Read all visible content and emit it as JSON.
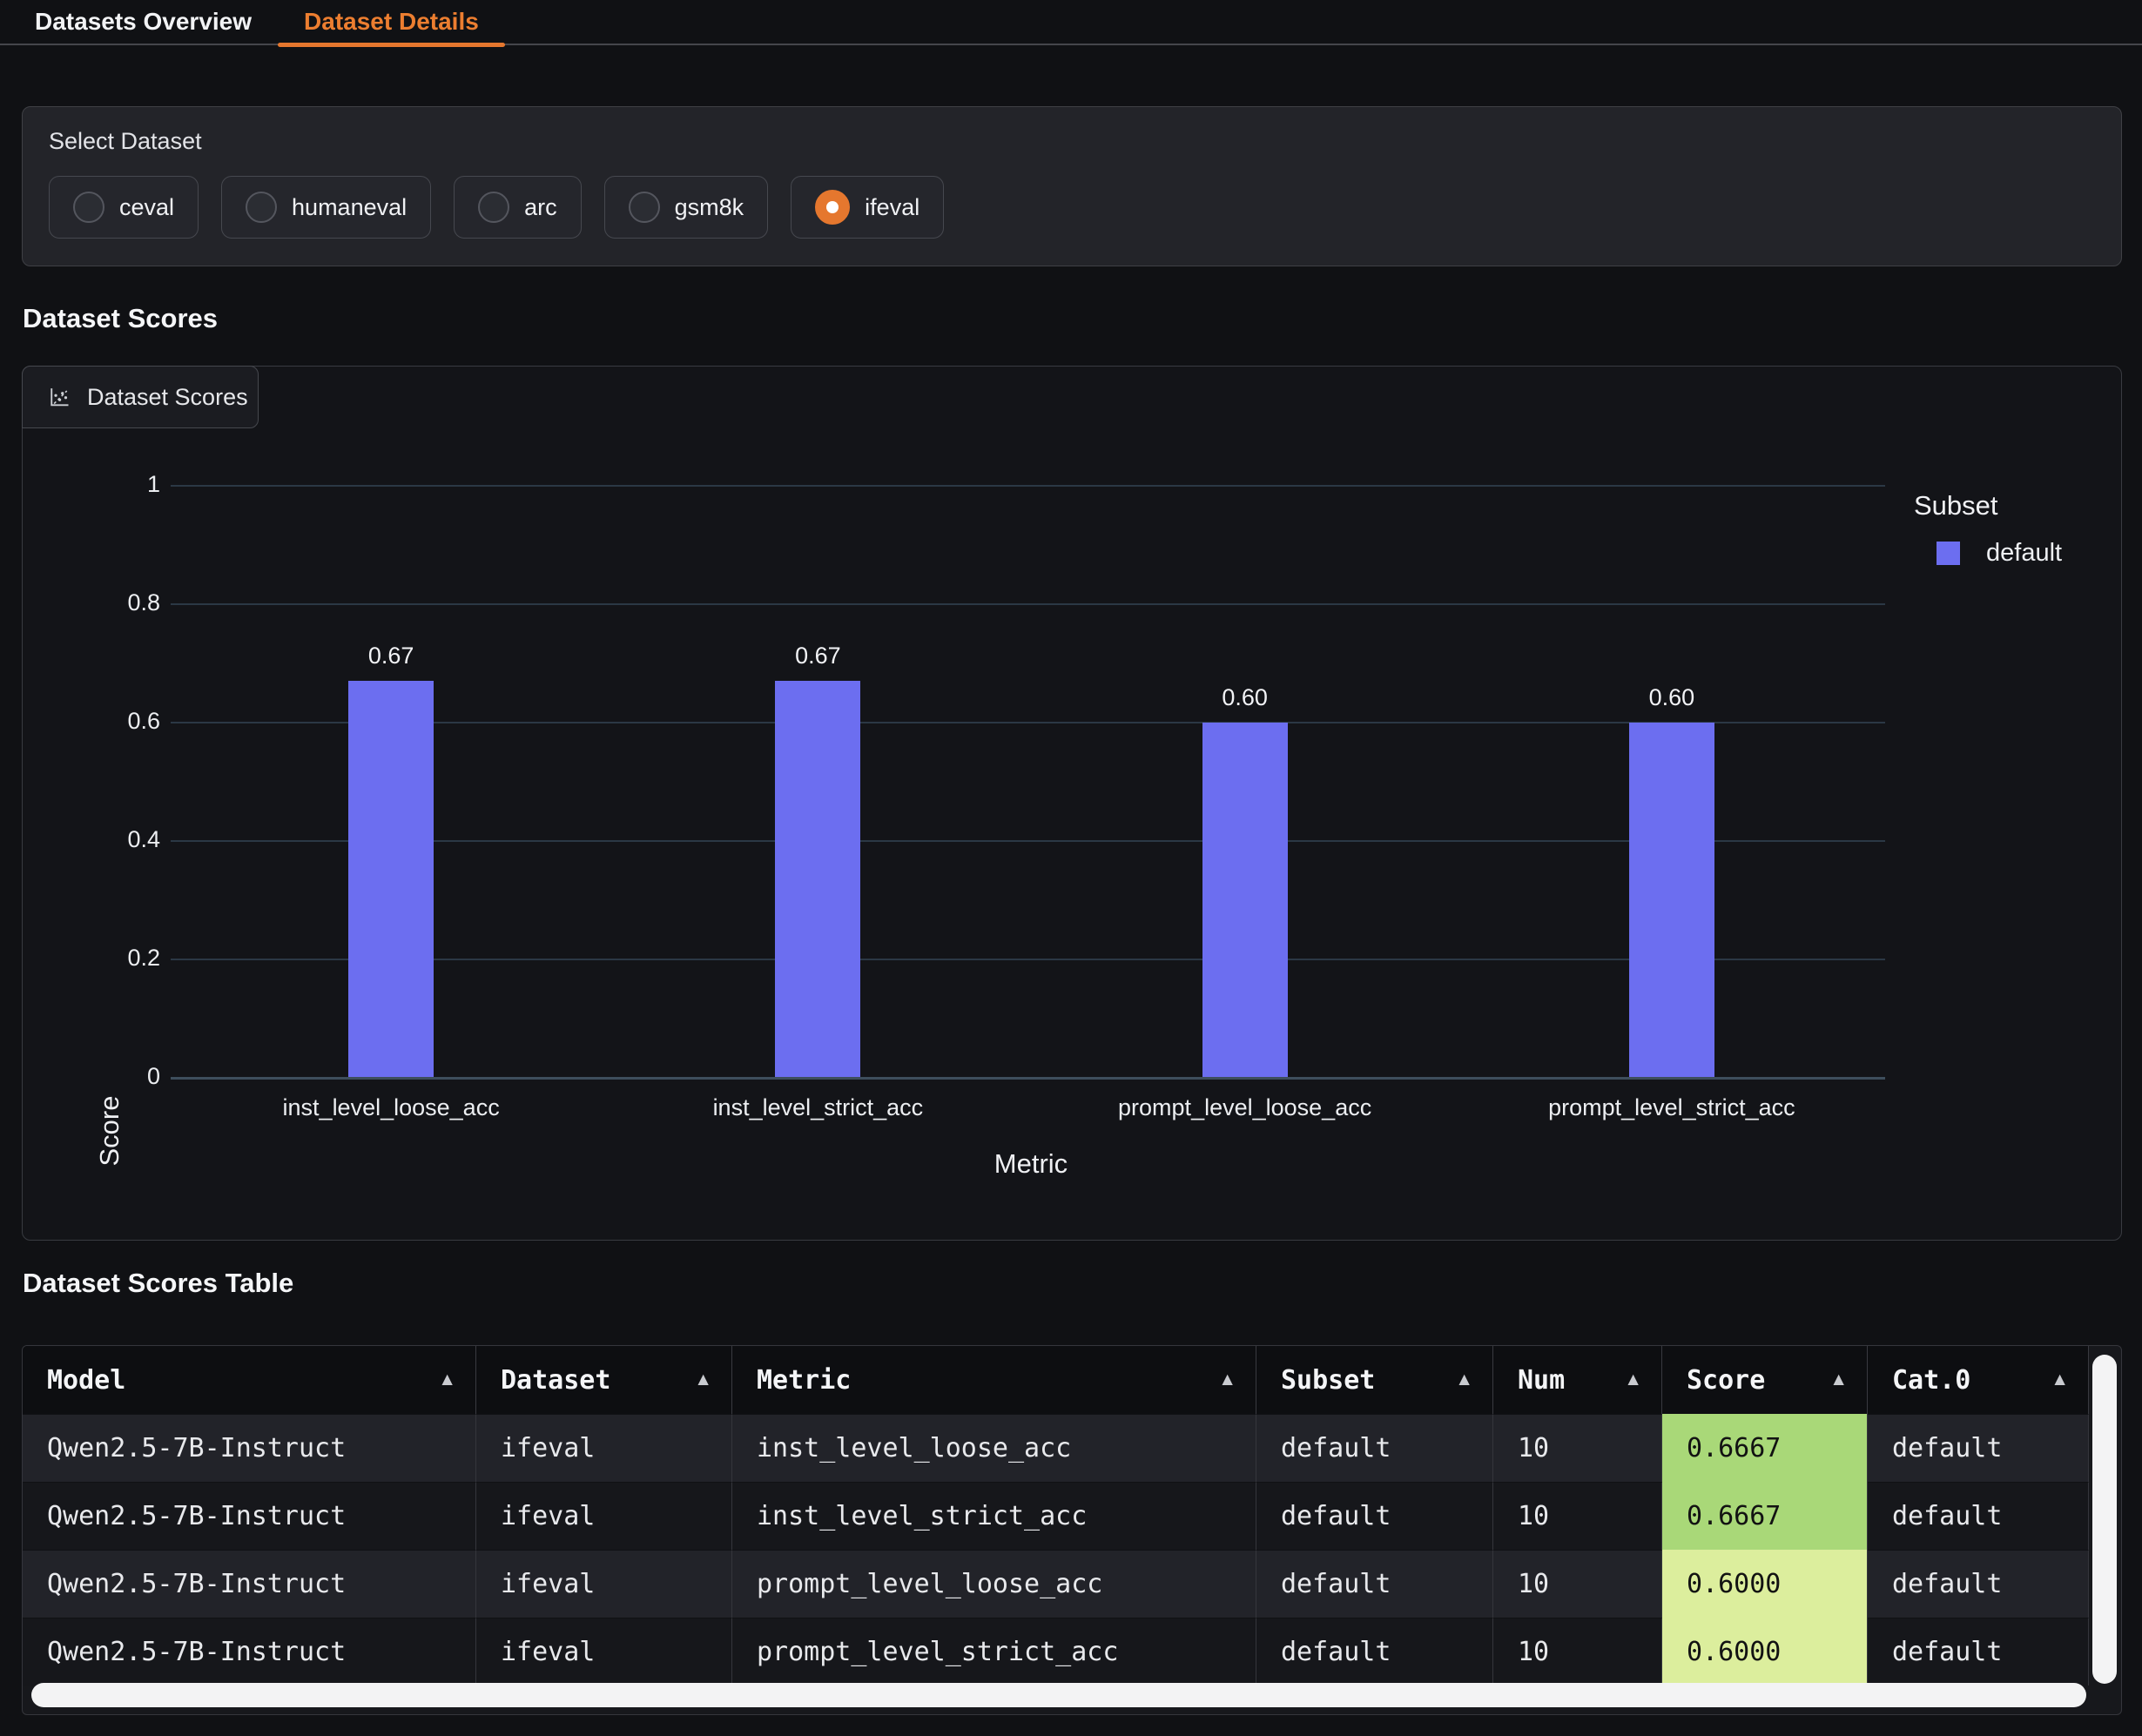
{
  "tabs": {
    "items": [
      {
        "label": "Datasets Overview",
        "active": false
      },
      {
        "label": "Dataset Details",
        "active": true
      }
    ]
  },
  "select_dataset": {
    "label": "Select Dataset",
    "options": [
      {
        "label": "ceval",
        "selected": false
      },
      {
        "label": "humaneval",
        "selected": false
      },
      {
        "label": "arc",
        "selected": false
      },
      {
        "label": "gsm8k",
        "selected": false
      },
      {
        "label": "ifeval",
        "selected": true
      }
    ]
  },
  "sections": {
    "scores_heading": "Dataset Scores",
    "table_heading": "Dataset Scores Table"
  },
  "plot_panel": {
    "label": "Dataset Scores",
    "icon": "scatter-plot-icon"
  },
  "chart_data": {
    "type": "bar",
    "title": "Dataset Scores",
    "categories": [
      "inst_level_loose_acc",
      "inst_level_strict_acc",
      "prompt_level_loose_acc",
      "prompt_level_strict_acc"
    ],
    "values": [
      0.67,
      0.67,
      0.6,
      0.6
    ],
    "value_labels": [
      "0.67",
      "0.67",
      "0.60",
      "0.60"
    ],
    "xlabel": "Metric",
    "ylabel": "Score",
    "ylim": [
      0,
      1
    ],
    "yticks": [
      0,
      0.2,
      0.4,
      0.6,
      0.8,
      1
    ],
    "ytick_labels": [
      "0",
      "0.2",
      "0.4",
      "0.6",
      "0.8",
      "1"
    ],
    "grid": true,
    "bar_color": "#6c6ef0",
    "legend": {
      "title": "Subset",
      "position": "right",
      "entries": [
        {
          "label": "default",
          "color": "#6c6ef0"
        }
      ]
    }
  },
  "table": {
    "columns": [
      "Model",
      "Dataset",
      "Metric",
      "Subset",
      "Num",
      "Score",
      "Cat.0"
    ],
    "sortable": true,
    "score_col_index": 5,
    "rows": [
      [
        "Qwen2.5-7B-Instruct",
        "ifeval",
        "inst_level_loose_acc",
        "default",
        "10",
        "0.6667",
        "default"
      ],
      [
        "Qwen2.5-7B-Instruct",
        "ifeval",
        "inst_level_strict_acc",
        "default",
        "10",
        "0.6667",
        "default"
      ],
      [
        "Qwen2.5-7B-Instruct",
        "ifeval",
        "prompt_level_loose_acc",
        "default",
        "10",
        "0.6000",
        "default"
      ],
      [
        "Qwen2.5-7B-Instruct",
        "ifeval",
        "prompt_level_strict_acc",
        "default",
        "10",
        "0.6000",
        "default"
      ]
    ],
    "score_cell_colors": [
      "#a9d878",
      "#a9d878",
      "#dcee9d",
      "#dcee9d"
    ]
  },
  "colors": {
    "accent_orange": "#e5772e",
    "bar_purple": "#6c6ef0"
  }
}
